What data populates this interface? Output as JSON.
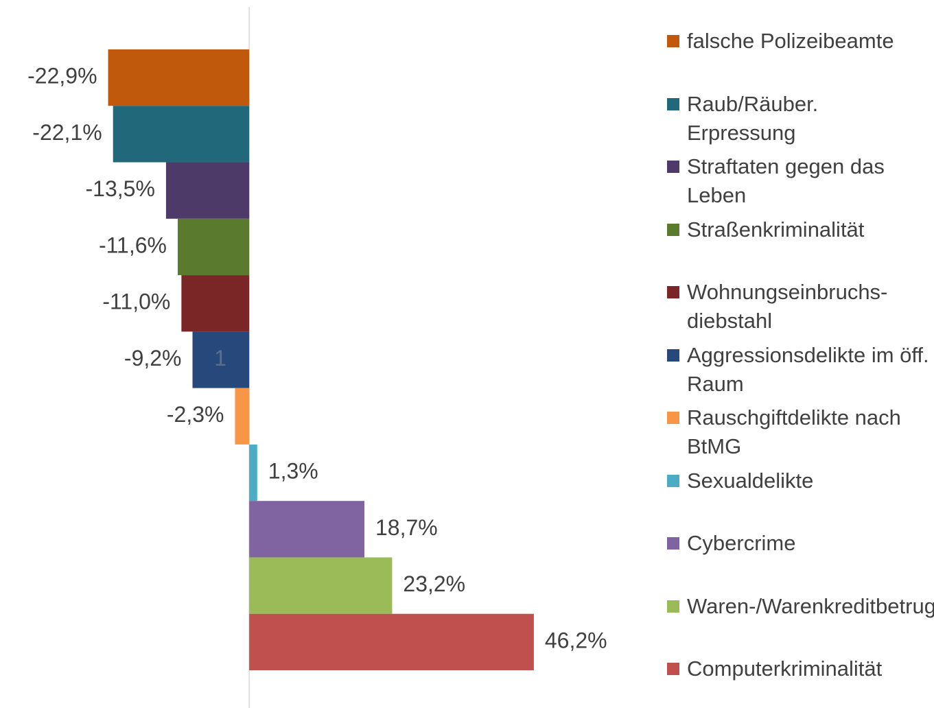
{
  "chart_data": {
    "type": "bar",
    "orientation": "horizontal",
    "categories": [
      "1"
    ],
    "xlim": [
      -40,
      50
    ],
    "series": [
      {
        "name": "falsche Polizeibeamte",
        "color": "#c0590c",
        "values": [
          -22.9
        ],
        "value_labels": [
          "-22,9%"
        ]
      },
      {
        "name": "Raub/Räuber. Erpressung",
        "color": "#21697a",
        "values": [
          -22.1
        ],
        "value_labels": [
          "-22,1%"
        ]
      },
      {
        "name": "Straftaten gegen das Leben",
        "color": "#4d3a68",
        "values": [
          -13.5
        ],
        "value_labels": [
          "-13,5%"
        ]
      },
      {
        "name": "Straßenkriminalität",
        "color": "#5a7a2d",
        "values": [
          -11.6
        ],
        "value_labels": [
          "-11,6%"
        ]
      },
      {
        "name": "Wohnungseinbruchs-diebstahl",
        "color": "#7a2626",
        "values": [
          -11.0
        ],
        "value_labels": [
          "-11,0%"
        ]
      },
      {
        "name": "Aggressionsdelikte im öff. Raum",
        "color": "#26487b",
        "values": [
          -9.2
        ],
        "value_labels": [
          "-9,2%"
        ]
      },
      {
        "name": "Rauschgiftdelikte nach BtMG",
        "color": "#f79646",
        "values": [
          -2.3
        ],
        "value_labels": [
          "-2,3%"
        ]
      },
      {
        "name": "Sexualdelikte",
        "color": "#4bacc6",
        "values": [
          1.3
        ],
        "value_labels": [
          "1,3%"
        ]
      },
      {
        "name": "Cybercrime",
        "color": "#8064a2",
        "values": [
          18.7
        ],
        "value_labels": [
          "18,7%"
        ]
      },
      {
        "name": "Waren-/Warenkreditbetrug",
        "color": "#9bbb59",
        "values": [
          23.2
        ],
        "value_labels": [
          "23,2%"
        ]
      },
      {
        "name": "Computerkriminalität",
        "color": "#c0504d",
        "values": [
          46.2
        ],
        "value_labels": [
          "46,2%"
        ]
      }
    ]
  }
}
